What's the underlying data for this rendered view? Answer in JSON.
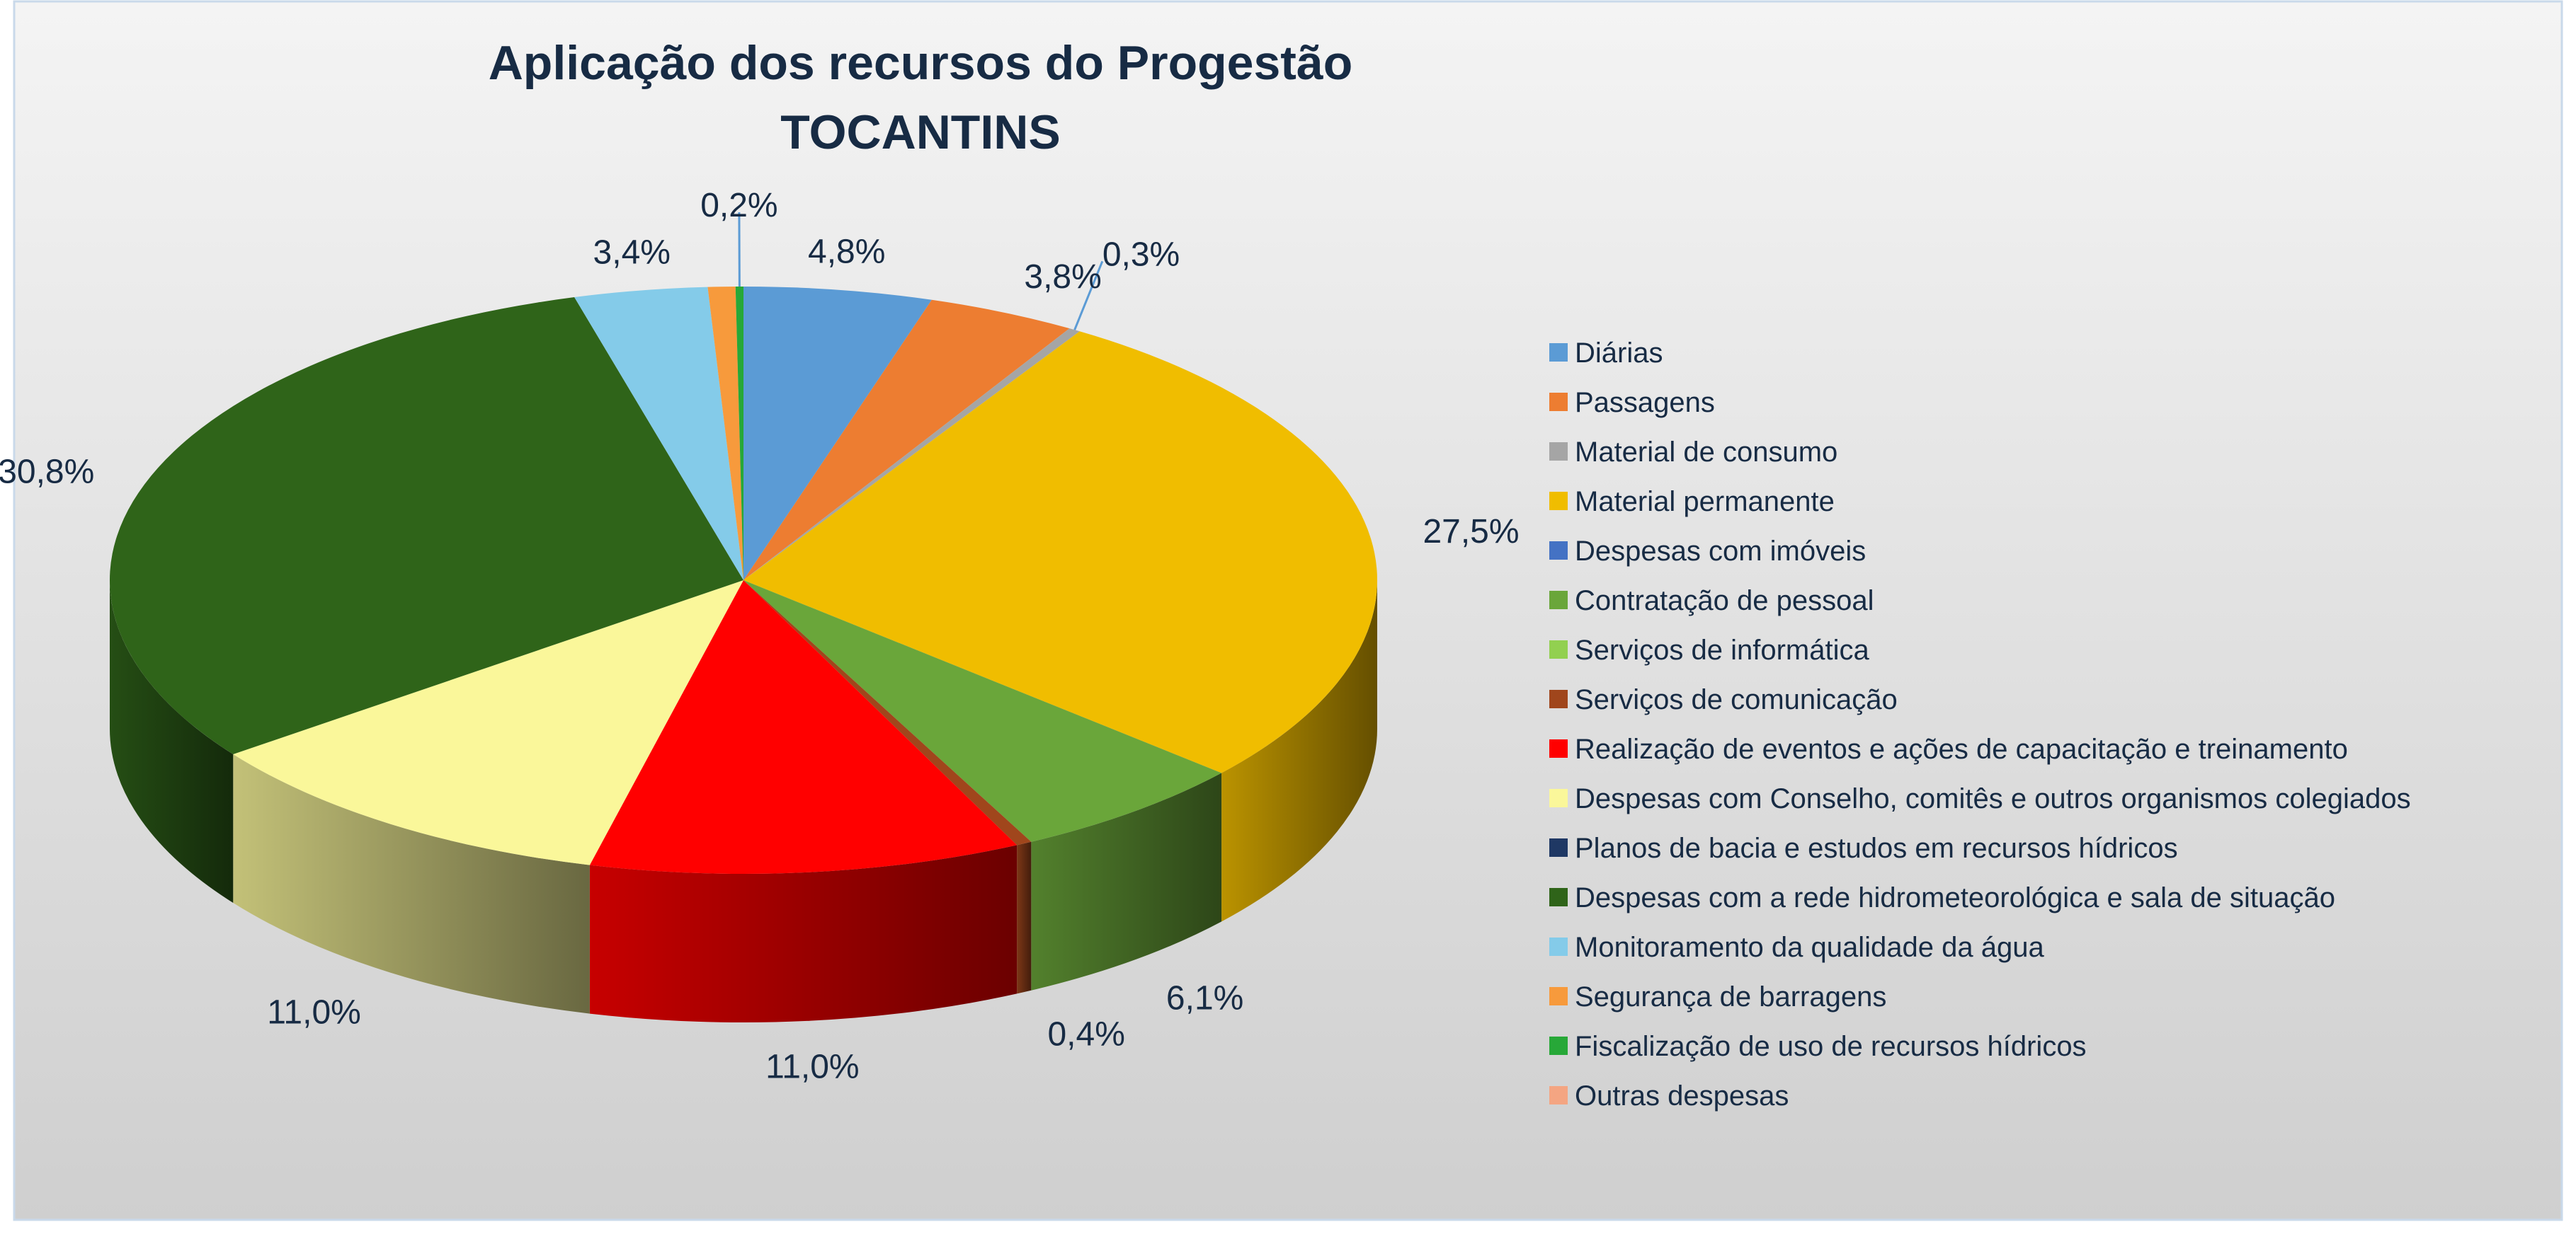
{
  "chart_data": {
    "type": "pie",
    "style": "3d-exploded-pie",
    "title": [
      "Aplicação dos recursos do Progestão",
      "TOCANTINS"
    ],
    "legend_position": "right",
    "series": [
      {
        "name": "Diárias",
        "value": 4.8,
        "label": "4,8%",
        "color": "#5b9bd5"
      },
      {
        "name": "Passagens",
        "value": 3.8,
        "label": "3,8%",
        "color": "#ed7d31"
      },
      {
        "name": "Material de consumo",
        "value": 0.3,
        "label": "0,3%",
        "color": "#a5a5a5"
      },
      {
        "name": "Material permanente",
        "value": 27.5,
        "label": "27,5%",
        "color": "#f0bd00"
      },
      {
        "name": "Despesas com imóveis",
        "value": 0,
        "label": "",
        "color": "#4472c4"
      },
      {
        "name": "Contratação de pessoal",
        "value": 6.1,
        "label": "6,1%",
        "color": "#6aa63a"
      },
      {
        "name": "Serviços de informática",
        "value": 0,
        "label": "",
        "color": "#92d050"
      },
      {
        "name": "Serviços de comunicação",
        "value": 0.4,
        "label": "0,4%",
        "color": "#a0461c"
      },
      {
        "name": "Realização de eventos e ações de capacitação e treinamento",
        "value": 11.0,
        "label": "11,0%",
        "color": "#ff0000"
      },
      {
        "name": "Despesas com Conselho, comitês e outros organismos colegiados",
        "value": 11.0,
        "label": "11,0%",
        "color": "#faf79a"
      },
      {
        "name": "Planos de bacia e estudos em recursos hídricos",
        "value": 0,
        "label": "",
        "color": "#1f3864"
      },
      {
        "name": "Despesas com a rede hidrometeorológica e sala de situação",
        "value": 30.8,
        "label": "30,8%",
        "color": "#2f6419"
      },
      {
        "name": "Monitoramento da qualidade da água",
        "value": 3.4,
        "label": "3,4%",
        "color": "#84cbe9"
      },
      {
        "name": "Segurança de barragens",
        "value": 0.7,
        "label": "",
        "color": "#f79a3c"
      },
      {
        "name": "Fiscalização de uso de recursos hídricos",
        "value": 0.2,
        "label": "0,2%",
        "color": "#27a838"
      },
      {
        "name": "Outras despesas",
        "value": 0,
        "label": "",
        "color": "#f4a582"
      }
    ]
  }
}
